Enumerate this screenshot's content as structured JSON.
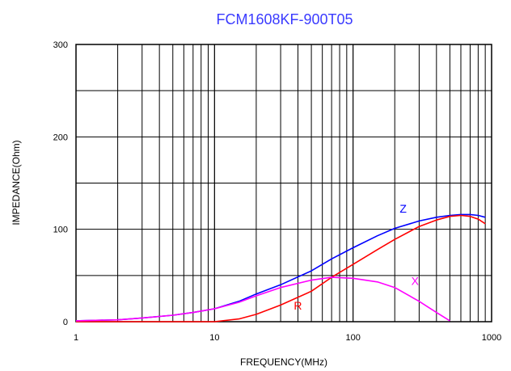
{
  "chart_data": {
    "type": "line",
    "title": "FCM1608KF-900T05",
    "xlabel": "FREQUENCY(MHz)",
    "ylabel": "IMPEDANCE(Ohm)",
    "xscale": "log",
    "xlim": [
      1,
      1000
    ],
    "ylim": [
      0,
      300
    ],
    "x_ticks": [
      1,
      10,
      100,
      1000
    ],
    "y_ticks": [
      0,
      100,
      200,
      300
    ],
    "x_tick_labels": [
      "1",
      "10",
      "100",
      "1000"
    ],
    "y_tick_labels": [
      "0",
      "100",
      "200",
      "300"
    ],
    "grid": true,
    "legend": "none",
    "series": [
      {
        "name": "Z",
        "color": "#0000ff",
        "x": [
          1,
          2,
          3,
          5,
          7,
          10,
          15,
          20,
          30,
          50,
          70,
          100,
          150,
          200,
          300,
          400,
          500,
          600,
          700,
          800,
          900
        ],
        "y": [
          1,
          2,
          4,
          7,
          10,
          14,
          22,
          30,
          40,
          55,
          68,
          80,
          93,
          101,
          109,
          113,
          115,
          116,
          116,
          115,
          113
        ]
      },
      {
        "name": "R",
        "color": "#ff0000",
        "x": [
          1,
          10,
          15,
          20,
          30,
          50,
          70,
          100,
          150,
          200,
          300,
          400,
          500,
          600,
          700,
          800,
          900
        ],
        "y": [
          0,
          0,
          3,
          8,
          18,
          33,
          48,
          62,
          78,
          89,
          103,
          110,
          114,
          115,
          114,
          111,
          106
        ]
      },
      {
        "name": "X",
        "color": "#ff00ff",
        "x": [
          1,
          2,
          3,
          5,
          7,
          10,
          15,
          20,
          30,
          50,
          70,
          100,
          150,
          200,
          300,
          400,
          500
        ],
        "y": [
          1,
          2,
          4,
          7,
          10,
          14,
          21,
          28,
          37,
          45,
          48,
          47,
          43,
          37,
          22,
          10,
          1
        ]
      }
    ],
    "annotations": [
      {
        "text": "Z",
        "x": 230,
        "y": 118,
        "color": "#0000ff"
      },
      {
        "text": "R",
        "x": 40,
        "y": 13,
        "color": "#ff0000"
      },
      {
        "text": "X",
        "x": 280,
        "y": 40,
        "color": "#ff00ff"
      }
    ]
  }
}
